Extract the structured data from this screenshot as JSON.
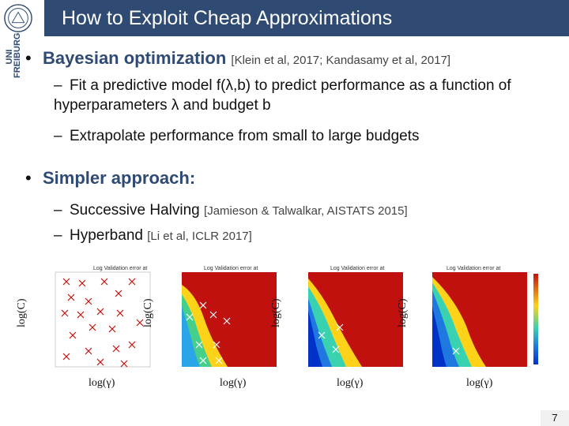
{
  "header": {
    "title": "How to Exploit Cheap Approximations",
    "logo_text": "UNI FREIBURG",
    "brand_color": "#2f4a73"
  },
  "bullets": [
    {
      "label": "Bayesian optimization",
      "cite": "[Klein et al, 2017; Kandasamy et al, 2017]",
      "subs": [
        "Fit a predictive model f(λ,b) to predict performance as a function of hyperparameters λ and budget b",
        "Extrapolate performance from small to large budgets"
      ]
    },
    {
      "label": "Simpler approach:",
      "subs": [
        {
          "text": "Successive Halving",
          "cite": "[Jamieson & Talwalkar, AISTATS 2015]"
        },
        {
          "text": "Hyperband",
          "cite": "[Li et al, ICLR 2017]"
        }
      ]
    }
  ],
  "plots": {
    "xlabel": "log(γ)",
    "ylabel": "log(C)",
    "titles": [
      "Log Validation error at",
      "Log Validation error at",
      "Log Validation error at",
      "Log Validation error at"
    ],
    "colors": {
      "high": "#c0110f",
      "mid": "#ffd21a",
      "low": "#0032c8"
    }
  },
  "page_number": "7"
}
